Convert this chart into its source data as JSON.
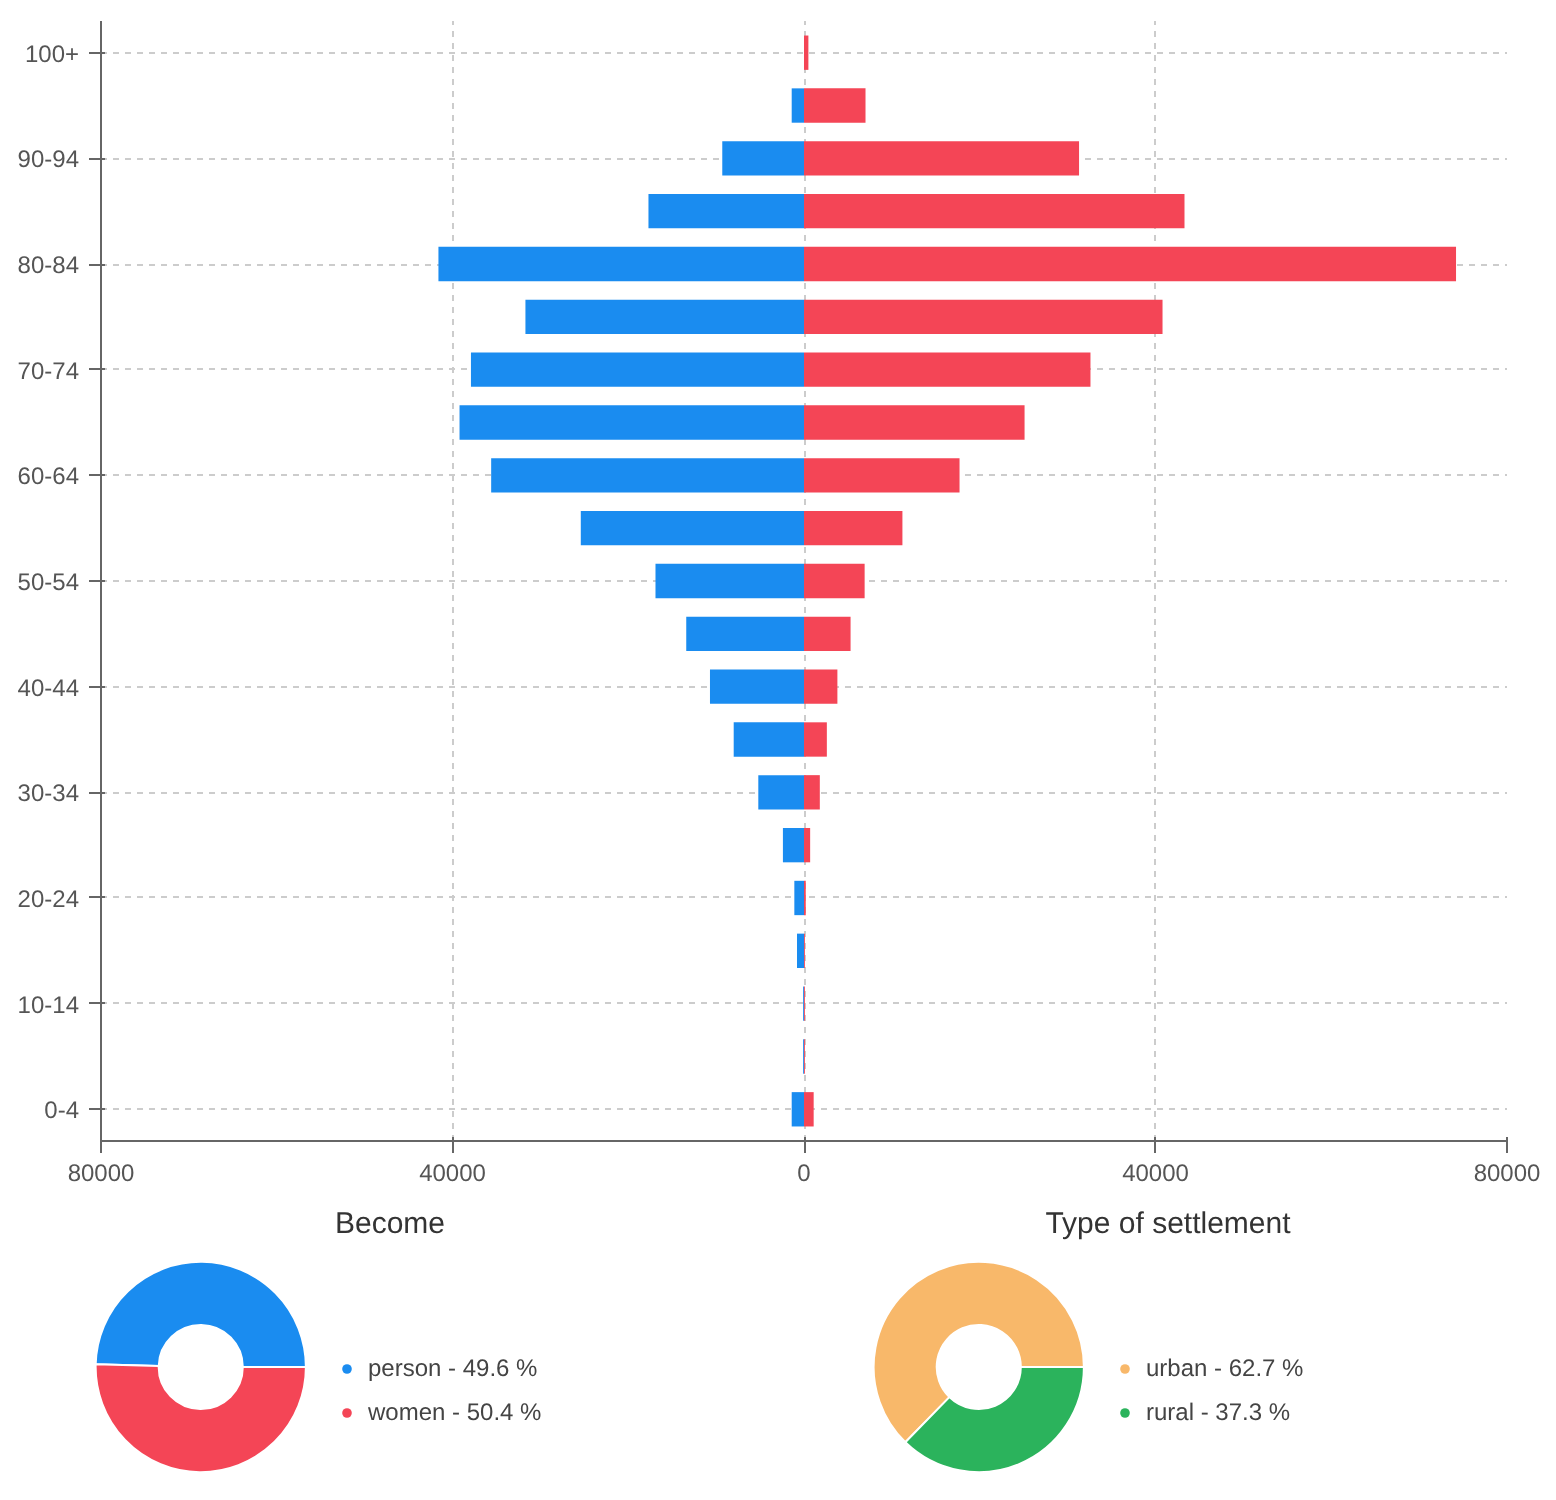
{
  "chart_data": [
    {
      "type": "bar",
      "orientation": "horizontal",
      "categories": [
        "100+",
        null,
        "90-94",
        null,
        "80-84",
        null,
        "70-74",
        null,
        "60-64",
        null,
        "50-54",
        null,
        "40-44",
        null,
        "30-34",
        null,
        "20-24",
        null,
        "10-14",
        null,
        "0-4"
      ],
      "series": [
        {
          "color": "#1a8cf0",
          "values": [
            0,
            -1400,
            -9300,
            -17700,
            -41600,
            -31700,
            -37900,
            -39200,
            -35600,
            -25400,
            -16900,
            -13400,
            -10700,
            -8000,
            -5200,
            -2400,
            -1100,
            -800,
            -100,
            -100,
            -1400
          ]
        },
        {
          "color": "#f44556",
          "values": [
            500,
            7000,
            31300,
            43300,
            74200,
            40800,
            32600,
            25100,
            17700,
            11200,
            6900,
            5300,
            3800,
            2600,
            1800,
            700,
            200,
            100,
            100,
            100,
            1100
          ]
        }
      ],
      "stacked": true,
      "xlim": [
        -80000,
        80000
      ],
      "xticks": [
        {
          "value": -80000,
          "label": "80000"
        },
        {
          "value": -40000,
          "label": "40000"
        },
        0,
        40000,
        80000
      ],
      "grid": true
    },
    {
      "type": "donut",
      "title": "Become",
      "categories": [
        "person",
        "women"
      ],
      "values": [
        49.6,
        50.4
      ],
      "value_labels": [
        "49.6 %",
        "50.4 %"
      ],
      "colors": [
        "#1a8cf0",
        "#f44556"
      ],
      "legend": "right"
    },
    {
      "type": "donut",
      "title": "Type of settlement",
      "categories": [
        "urban",
        "rural"
      ],
      "values": [
        62.7,
        37.3
      ],
      "value_labels": [
        "62.7 %",
        "37.3 %"
      ],
      "colors": [
        "#f8b86a",
        "#2bb35c"
      ],
      "legend": "right"
    }
  ]
}
